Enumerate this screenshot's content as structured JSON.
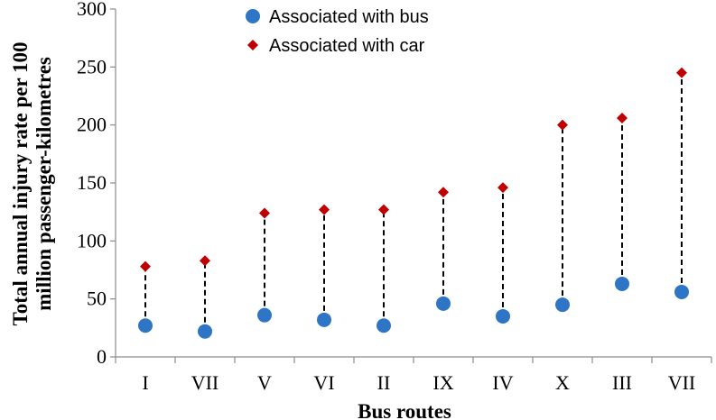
{
  "chart_data": {
    "type": "scatter",
    "title": "",
    "xlabel": "Bus routes",
    "ylabel": "Total annual injury rate per 100 million passenger-kilometres",
    "ylabel_lines": [
      "Total annual injury rate per 100",
      "million passenger-kilometres"
    ],
    "ylim": [
      0,
      300
    ],
    "yticks": [
      0,
      50,
      100,
      150,
      200,
      250,
      300
    ],
    "grid": false,
    "legend_position": "top-center",
    "categories": [
      "I",
      "VII",
      "V",
      "VI",
      "II",
      "IX",
      "IV",
      "X",
      "III",
      "VII"
    ],
    "series": [
      {
        "name": "Associated with bus",
        "marker": "circle",
        "color": "#2e75c6",
        "values": [
          27,
          22,
          36,
          32,
          27,
          46,
          35,
          45,
          63,
          56
        ]
      },
      {
        "name": "Associated with car",
        "marker": "diamond",
        "color": "#c00000",
        "values": [
          78,
          83,
          124,
          127,
          127,
          142,
          146,
          200,
          206,
          245
        ]
      }
    ],
    "connector": {
      "style": "dashed",
      "color": "#000000"
    }
  }
}
